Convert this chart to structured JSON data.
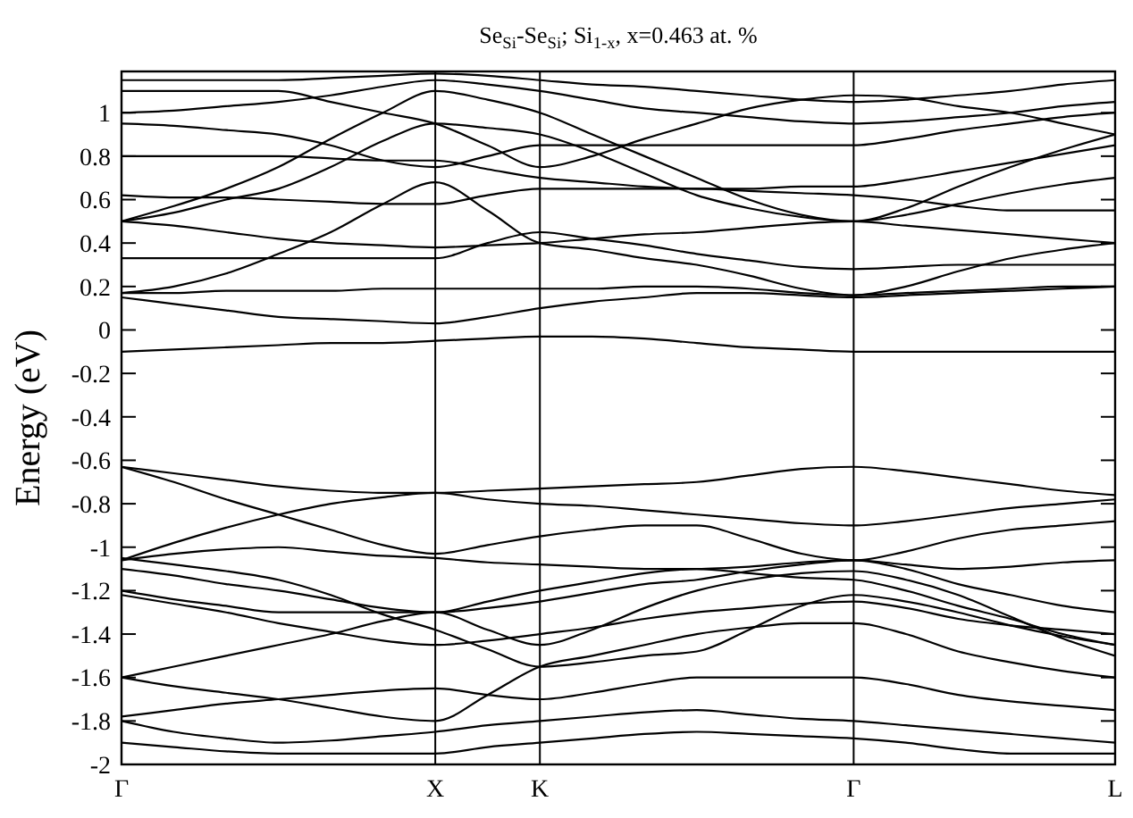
{
  "chart_data": {
    "type": "line",
    "title": "Se$_{Si}$-Se$_{Si}$;  Si$_{1-x}$, x=0.463 at. %",
    "ylabel": "Energy (eV)",
    "categories": [
      "Γ",
      null,
      null,
      null,
      null,
      null,
      "X",
      null,
      "K",
      null,
      null,
      null,
      null,
      null,
      "Γ",
      null,
      null,
      null,
      null,
      "L"
    ],
    "ylim": [
      -2,
      1.19
    ],
    "yticks": [
      -2,
      -1.8,
      -1.6,
      -1.4,
      -1.2,
      -1,
      -0.8,
      -0.6,
      -0.4,
      -0.2,
      0,
      0.2,
      0.4,
      0.6,
      0.8,
      1
    ],
    "grid": "x",
    "series": [
      {
        "color": "#000000",
        "values": [
          -0.1,
          -0.09,
          -0.08,
          -0.07,
          -0.06,
          -0.06,
          -0.05,
          -0.04,
          -0.03,
          -0.03,
          -0.04,
          -0.06,
          -0.08,
          -0.09,
          -0.1,
          -0.1,
          -0.1,
          -0.1,
          -0.1,
          -0.1
        ]
      },
      {
        "color": "#000000",
        "values": [
          0.15,
          0.12,
          0.09,
          0.06,
          0.05,
          0.04,
          0.03,
          0.06,
          0.1,
          0.13,
          0.15,
          0.17,
          0.17,
          0.16,
          0.15,
          0.16,
          0.17,
          0.18,
          0.19,
          0.2
        ]
      },
      {
        "color": "#000000",
        "values": [
          0.17,
          0.17,
          0.18,
          0.18,
          0.18,
          0.19,
          0.19,
          0.19,
          0.19,
          0.19,
          0.2,
          0.2,
          0.19,
          0.17,
          0.16,
          0.17,
          0.18,
          0.19,
          0.2,
          0.2
        ]
      },
      {
        "color": "#000000",
        "values": [
          0.17,
          0.2,
          0.26,
          0.35,
          0.45,
          0.58,
          0.68,
          0.55,
          0.4,
          0.37,
          0.33,
          0.3,
          0.25,
          0.19,
          0.16,
          0.2,
          0.27,
          0.33,
          0.37,
          0.4
        ]
      },
      {
        "color": "#000000",
        "values": [
          0.5,
          0.48,
          0.45,
          0.42,
          0.4,
          0.39,
          0.38,
          0.39,
          0.4,
          0.42,
          0.44,
          0.45,
          0.47,
          0.49,
          0.5,
          0.48,
          0.46,
          0.44,
          0.42,
          0.4
        ]
      },
      {
        "color": "#000000",
        "values": [
          0.5,
          0.54,
          0.6,
          0.65,
          0.75,
          0.87,
          0.95,
          0.93,
          0.9,
          0.82,
          0.72,
          0.62,
          0.56,
          0.52,
          0.5,
          0.53,
          0.58,
          0.63,
          0.67,
          0.7
        ]
      },
      {
        "color": "#000000",
        "values": [
          0.5,
          0.57,
          0.65,
          0.75,
          0.88,
          1.0,
          1.1,
          1.06,
          1.0,
          0.9,
          0.8,
          0.7,
          0.6,
          0.53,
          0.5,
          0.56,
          0.66,
          0.75,
          0.83,
          0.9
        ]
      },
      {
        "color": "#000000",
        "values": [
          0.33,
          0.33,
          0.33,
          0.33,
          0.33,
          0.33,
          0.33,
          0.4,
          0.45,
          0.42,
          0.39,
          0.35,
          0.32,
          0.29,
          0.28,
          0.29,
          0.3,
          0.3,
          0.3,
          0.3
        ]
      },
      {
        "color": "#000000",
        "values": [
          0.62,
          0.61,
          0.61,
          0.6,
          0.59,
          0.58,
          0.58,
          0.62,
          0.65,
          0.65,
          0.65,
          0.65,
          0.64,
          0.63,
          0.62,
          0.6,
          0.57,
          0.55,
          0.55,
          0.55
        ]
      },
      {
        "color": "#000000",
        "values": [
          0.8,
          0.8,
          0.8,
          0.8,
          0.79,
          0.78,
          0.78,
          0.74,
          0.7,
          0.68,
          0.66,
          0.65,
          0.65,
          0.66,
          0.66,
          0.69,
          0.73,
          0.77,
          0.81,
          0.85
        ]
      },
      {
        "color": "#000000",
        "values": [
          0.95,
          0.94,
          0.92,
          0.9,
          0.85,
          0.78,
          0.75,
          0.8,
          0.85,
          0.85,
          0.85,
          0.85,
          0.85,
          0.85,
          0.85,
          0.88,
          0.92,
          0.95,
          0.98,
          1.0
        ]
      },
      {
        "color": "#000000",
        "values": [
          1.0,
          1.01,
          1.03,
          1.05,
          1.08,
          1.12,
          1.15,
          1.13,
          1.1,
          1.06,
          1.02,
          1.0,
          0.98,
          0.96,
          0.95,
          0.96,
          0.98,
          1.0,
          1.03,
          1.05
        ]
      },
      {
        "color": "#000000",
        "values": [
          1.1,
          1.1,
          1.1,
          1.1,
          1.05,
          1.0,
          0.95,
          0.85,
          0.75,
          0.8,
          0.88,
          0.95,
          1.02,
          1.06,
          1.08,
          1.07,
          1.03,
          1.0,
          0.95,
          0.9
        ]
      },
      {
        "color": "#000000",
        "values": [
          1.15,
          1.15,
          1.15,
          1.15,
          1.16,
          1.17,
          1.18,
          1.17,
          1.15,
          1.13,
          1.12,
          1.1,
          1.08,
          1.06,
          1.05,
          1.06,
          1.08,
          1.1,
          1.13,
          1.15
        ]
      },
      {
        "color": "#000000",
        "values": [
          -0.63,
          -0.66,
          -0.69,
          -0.72,
          -0.74,
          -0.75,
          -0.75,
          -0.74,
          -0.73,
          -0.72,
          -0.71,
          -0.7,
          -0.67,
          -0.64,
          -0.63,
          -0.65,
          -0.68,
          -0.71,
          -0.74,
          -0.76
        ]
      },
      {
        "color": "#000000",
        "values": [
          -1.06,
          -0.98,
          -0.91,
          -0.85,
          -0.8,
          -0.77,
          -0.75,
          -0.78,
          -0.8,
          -0.81,
          -0.83,
          -0.85,
          -0.87,
          -0.89,
          -0.9,
          -0.88,
          -0.85,
          -0.82,
          -0.8,
          -0.78
        ]
      },
      {
        "color": "#000000",
        "values": [
          -0.63,
          -0.7,
          -0.78,
          -0.85,
          -0.92,
          -0.99,
          -1.03,
          -0.99,
          -0.95,
          -0.92,
          -0.9,
          -0.9,
          -0.96,
          -1.03,
          -1.06,
          -1.02,
          -0.96,
          -0.92,
          -0.9,
          -0.88
        ]
      },
      {
        "color": "#000000",
        "values": [
          -1.06,
          -1.03,
          -1.01,
          -1.0,
          -1.02,
          -1.04,
          -1.05,
          -1.07,
          -1.08,
          -1.09,
          -1.1,
          -1.1,
          -1.09,
          -1.07,
          -1.06,
          -1.08,
          -1.1,
          -1.09,
          -1.07,
          -1.06
        ]
      },
      {
        "color": "#000000",
        "values": [
          -1.1,
          -1.13,
          -1.17,
          -1.2,
          -1.24,
          -1.28,
          -1.3,
          -1.28,
          -1.25,
          -1.21,
          -1.17,
          -1.15,
          -1.11,
          -1.08,
          -1.06,
          -1.1,
          -1.17,
          -1.22,
          -1.27,
          -1.3
        ]
      },
      {
        "color": "#000000",
        "values": [
          -1.2,
          -1.24,
          -1.27,
          -1.3,
          -1.3,
          -1.3,
          -1.3,
          -1.25,
          -1.2,
          -1.16,
          -1.12,
          -1.1,
          -1.12,
          -1.14,
          -1.15,
          -1.2,
          -1.27,
          -1.33,
          -1.4,
          -1.45
        ]
      },
      {
        "color": "#000000",
        "values": [
          -1.22,
          -1.26,
          -1.3,
          -1.35,
          -1.39,
          -1.43,
          -1.45,
          -1.43,
          -1.4,
          -1.37,
          -1.33,
          -1.3,
          -1.28,
          -1.26,
          -1.25,
          -1.28,
          -1.33,
          -1.36,
          -1.38,
          -1.4
        ]
      },
      {
        "color": "#000000",
        "values": [
          -1.6,
          -1.55,
          -1.5,
          -1.45,
          -1.4,
          -1.34,
          -1.3,
          -1.38,
          -1.45,
          -1.38,
          -1.28,
          -1.2,
          -1.15,
          -1.12,
          -1.11,
          -1.15,
          -1.22,
          -1.32,
          -1.42,
          -1.5
        ]
      },
      {
        "color": "#000000",
        "values": [
          -1.6,
          -1.64,
          -1.67,
          -1.7,
          -1.74,
          -1.78,
          -1.8,
          -1.68,
          -1.55,
          -1.5,
          -1.45,
          -1.4,
          -1.37,
          -1.35,
          -1.35,
          -1.4,
          -1.48,
          -1.53,
          -1.57,
          -1.6
        ]
      },
      {
        "color": "#000000",
        "values": [
          -1.78,
          -1.75,
          -1.72,
          -1.7,
          -1.68,
          -1.66,
          -1.65,
          -1.68,
          -1.7,
          -1.67,
          -1.63,
          -1.6,
          -1.6,
          -1.6,
          -1.6,
          -1.63,
          -1.68,
          -1.71,
          -1.73,
          -1.75
        ]
      },
      {
        "color": "#000000",
        "values": [
          -1.8,
          -1.85,
          -1.88,
          -1.9,
          -1.89,
          -1.87,
          -1.85,
          -1.82,
          -1.8,
          -1.78,
          -1.76,
          -1.75,
          -1.77,
          -1.79,
          -1.8,
          -1.82,
          -1.84,
          -1.86,
          -1.88,
          -1.9
        ]
      },
      {
        "color": "#000000",
        "values": [
          -1.9,
          -1.92,
          -1.94,
          -1.95,
          -1.95,
          -1.95,
          -1.95,
          -1.92,
          -1.9,
          -1.88,
          -1.86,
          -1.85,
          -1.86,
          -1.87,
          -1.88,
          -1.9,
          -1.93,
          -1.95,
          -1.95,
          -1.95
        ]
      },
      {
        "color": "#000000",
        "values": [
          -1.05,
          -1.08,
          -1.11,
          -1.15,
          -1.22,
          -1.31,
          -1.38,
          -1.47,
          -1.55,
          -1.53,
          -1.5,
          -1.48,
          -1.38,
          -1.27,
          -1.22,
          -1.25,
          -1.3,
          -1.36,
          -1.41,
          -1.45
        ]
      }
    ]
  }
}
